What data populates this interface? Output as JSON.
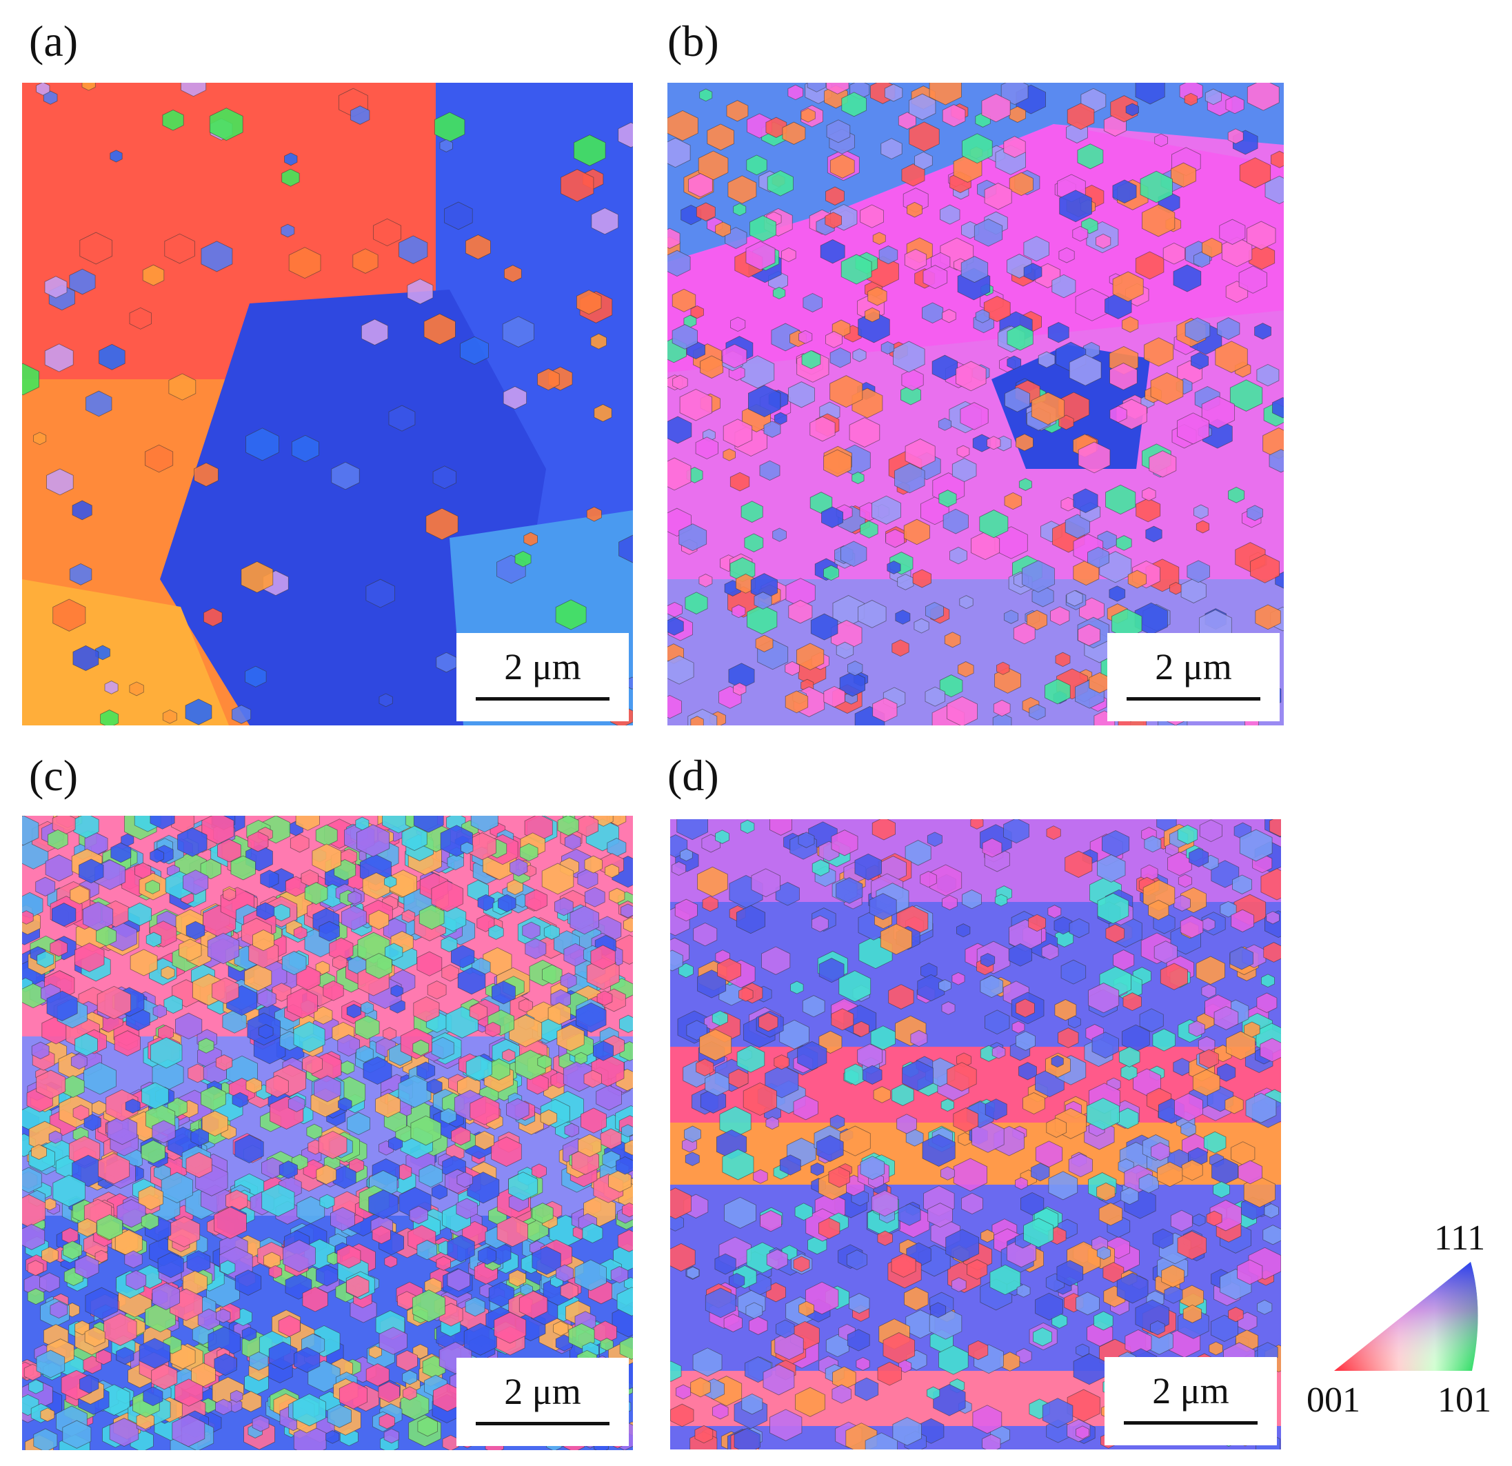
{
  "panels": [
    {
      "label": "(a)",
      "scale_bar": "2 μm",
      "colors": [
        "#ff5a4a",
        "#ff7a3a",
        "#3a55e8",
        "#5a7af0",
        "#2f6af2",
        "#c99cf0",
        "#ff9b3a",
        "#45e45a"
      ]
    },
    {
      "label": "(b)",
      "scale_bar": "2 μm",
      "colors": [
        "#f060ef",
        "#ff6fd8",
        "#7a8af0",
        "#ff5a5a",
        "#3a55e8",
        "#45e4a0",
        "#ff8a4a",
        "#9a9af5"
      ]
    },
    {
      "label": "(c)",
      "scale_bar": "2 μm",
      "colors": [
        "#ff6f9a",
        "#45d4e8",
        "#a070f0",
        "#ff5aa0",
        "#3a5aef",
        "#7ae07a",
        "#ffb05a",
        "#5ab0f0"
      ]
    },
    {
      "label": "(d)",
      "scale_bar": "2 μm",
      "colors": [
        "#c070f0",
        "#5a6af0",
        "#ff5a6a",
        "#ff9a4a",
        "#7a9af5",
        "#45e0d0",
        "#e060e8",
        "#4a5aea"
      ]
    }
  ],
  "legend": {
    "corner_111": "111",
    "corner_001": "001",
    "corner_101": "101"
  }
}
